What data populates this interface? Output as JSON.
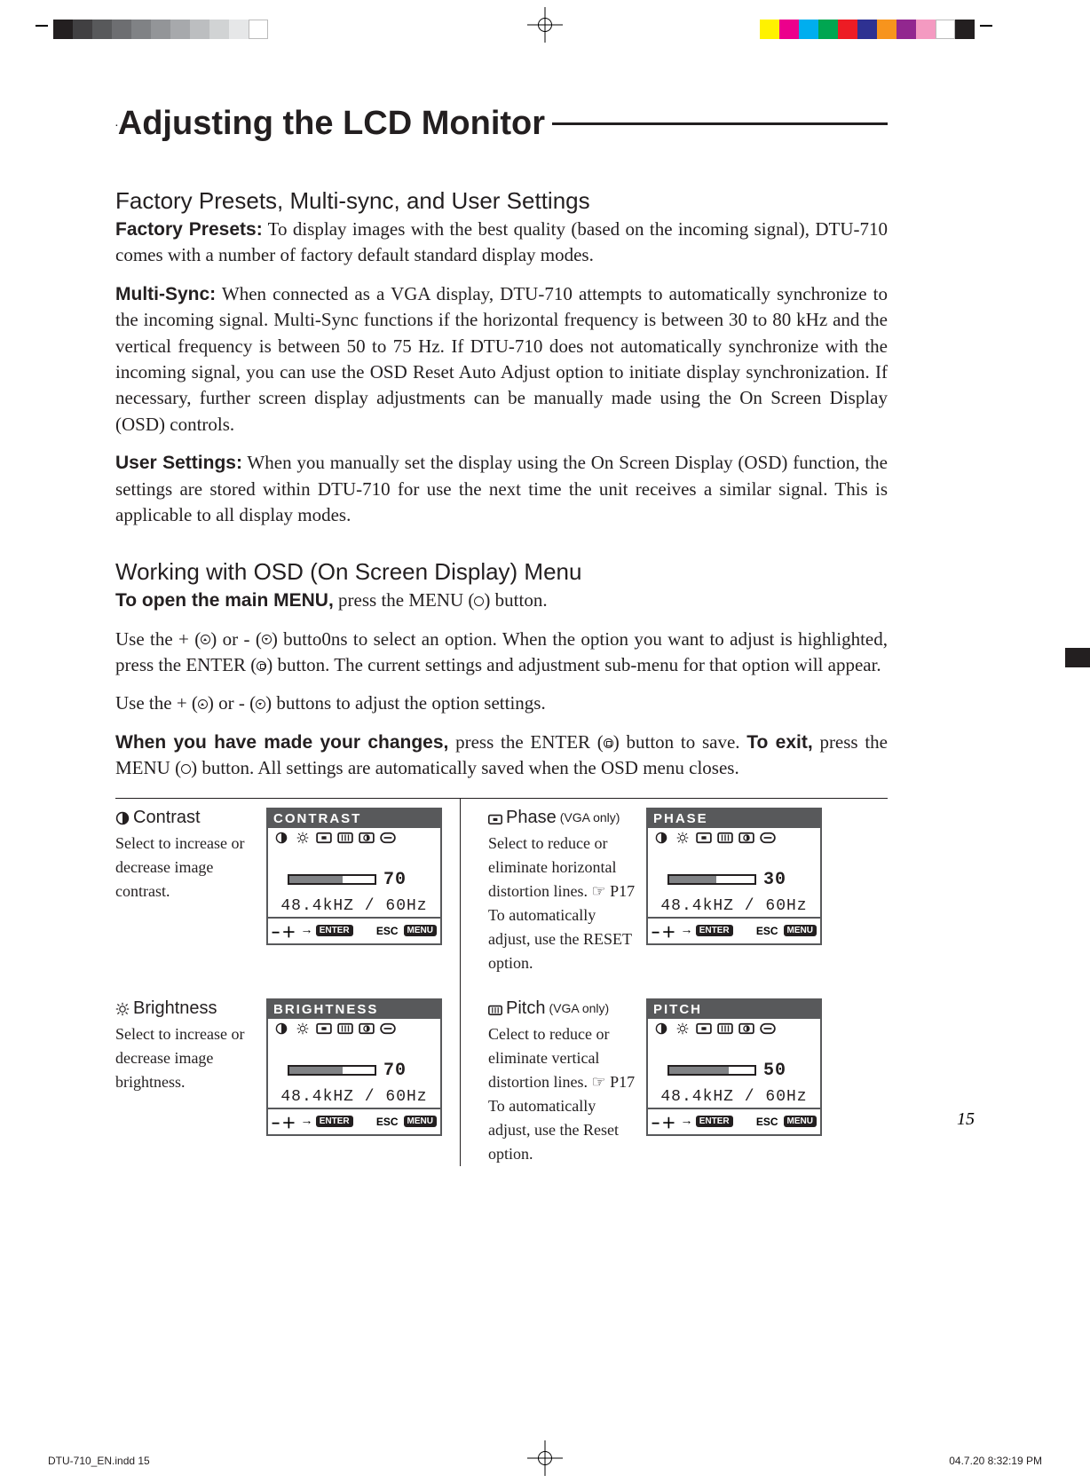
{
  "regMarks": {
    "grayscale": [
      "#231f20",
      "#414042",
      "#58595b",
      "#6d6e71",
      "#808285",
      "#939598",
      "#a7a9ac",
      "#bcbec0",
      "#d1d3d4",
      "#e6e7e8",
      "#ffffff"
    ],
    "colors": [
      "#fff200",
      "#ec008c",
      "#00aeef",
      "#00a651",
      "#ed1c24",
      "#2e3192",
      "#f7941d",
      "#92278f",
      "#f49ac1",
      "#ffffff",
      "#231f20"
    ]
  },
  "mainTitle": "Adjusting the LCD Monitor",
  "section1": {
    "heading": "Factory Presets, Multi-sync, and User Settings",
    "p1_bold": "Factory Presets:",
    "p1": " To display images with the best quality (based on the incoming signal), DTU-710 comes with a number of factory default standard display modes.",
    "p2_bold": "Multi-Sync:",
    "p2": " When connected as a VGA display, DTU-710 attempts to automatically synchronize to the incoming signal.  Multi-Sync functions if the horizontal frequency is between 30 to 80 kHz and the vertical frequency is between 50 to 75 Hz. If DTU-710 does not automatically synchronize with the incoming signal, you can use the OSD Reset Auto Adjust option to initiate display synchronization.  If necessary, further screen display adjustments can be manually made using the On Screen Display (OSD) controls.",
    "p3_bold": "User Settings:",
    "p3": " When you manually set the display using the On Screen Display (OSD) function, the settings are stored within DTU-710 for use the next time the unit receives a similar signal.  This is applicable to all display modes."
  },
  "section2": {
    "heading": "Working with OSD (On Screen Display) Menu",
    "p1a": "To open the main MENU,",
    "p1b": " press the MENU (",
    "p1c": ") button.",
    "p2a": "Use the + (",
    "p2b": ") or  -  (",
    "p2c": ") butto0ns to select an option.  When the option you want to adjust is highlighted, press the ENTER (",
    "p2d": ") button.  The current settings and adjustment sub-menu for that option will appear.",
    "p3a": "Use the + (",
    "p3b": ") or  -  (",
    "p3c": ") buttons to adjust the option settings.",
    "p4a": "When you have made your changes,",
    "p4b": " press the ENTER (",
    "p4c": ") button to save. ",
    "p4d": "To exit,",
    "p4e": " press the MENU (",
    "p4f": ") button. All settings are automatically saved when the OSD menu closes."
  },
  "osd": {
    "freq": "48.4kHZ / 60Hz",
    "footer_pm": "−＋",
    "footer_enter": "ENTER",
    "footer_esc": "ESC",
    "footer_menu": "MENU",
    "items": [
      {
        "title": "Contrast",
        "desc": "Select to increase or decrease image contrast.",
        "panel_title": "CONTRAST",
        "value": "70",
        "fill_pct": 63
      },
      {
        "title": "Phase",
        "title_suffix": " (VGA only)",
        "desc": "Select to reduce or eliminate horizontal distortion lines. ☞ P17 To automatically adjust, use the RESET option.",
        "panel_title": "PHASE",
        "value": "30",
        "fill_pct": 55
      },
      {
        "title": "Brightness",
        "desc": "Select to increase or decrease image brightness.",
        "panel_title": "BRIGHTNESS",
        "value": "70",
        "fill_pct": 63
      },
      {
        "title": "Pitch",
        "title_suffix": " (VGA only)",
        "desc": "Celect to reduce or eliminate vertical distortion lines. ☞ P17 To automatically adjust, use the Reset option.",
        "panel_title": "PITCH",
        "value": "50",
        "fill_pct": 70
      }
    ]
  },
  "pageNumber": "15",
  "docFooter": {
    "left": "DTU-710_EN.indd   15",
    "right": "04.7.20   8:32:19 PM"
  }
}
